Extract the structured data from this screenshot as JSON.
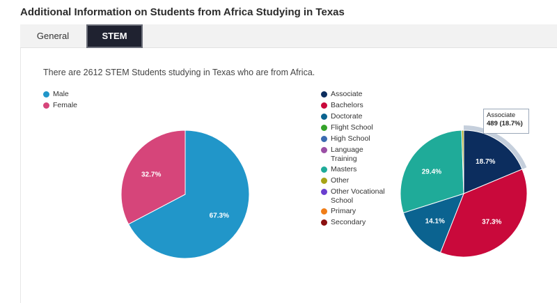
{
  "page": {
    "title": "Additional Information on Students from Africa Studying in Texas"
  },
  "tabs": [
    {
      "label": "General",
      "active": false
    },
    {
      "label": "STEM",
      "active": true
    }
  ],
  "summary": "There are 2612 STEM Students studying in Texas who are from Africa.",
  "colors": {
    "male": "#2196c9",
    "female": "#d6457a",
    "associate": "#0c2d5e",
    "bachelors": "#c9093b",
    "doctorate": "#0b6390",
    "flight_school": "#35a32a",
    "high_school": "#3b6bb0",
    "language_training": "#9b4fa5",
    "masters": "#1fab99",
    "other": "#a7a316",
    "other_vocational": "#6a3fcf",
    "primary": "#f07d17",
    "secondary": "#8a1010"
  },
  "gender_legend": [
    {
      "label": "Male",
      "color": "#2196c9"
    },
    {
      "label": "Female",
      "color": "#d6457a"
    }
  ],
  "degree_legend": [
    {
      "label": "Associate",
      "color": "#0c2d5e"
    },
    {
      "label": "Bachelors",
      "color": "#c9093b"
    },
    {
      "label": "Doctorate",
      "color": "#0b6390"
    },
    {
      "label": "Flight School",
      "color": "#35a32a"
    },
    {
      "label": "High School",
      "color": "#3b6bb0"
    },
    {
      "label": "Language\nTraining",
      "color": "#9b4fa5"
    },
    {
      "label": "Masters",
      "color": "#1fab99"
    },
    {
      "label": "Other",
      "color": "#a7a316"
    },
    {
      "label": "Other Vocational\nSchool",
      "color": "#6a3fcf"
    },
    {
      "label": "Primary",
      "color": "#f07d17"
    },
    {
      "label": "Secondary",
      "color": "#8a1010"
    }
  ],
  "tooltip": {
    "title": "Associate",
    "value": "489 (18.7%)"
  },
  "chart_data": [
    {
      "type": "pie",
      "title": "",
      "slices": [
        {
          "name": "Male",
          "value": 67.3,
          "label": "67.3%",
          "color": "#2196c9"
        },
        {
          "name": "Female",
          "value": 32.7,
          "label": "32.7%",
          "color": "#d6457a"
        }
      ]
    },
    {
      "type": "pie",
      "title": "",
      "slices": [
        {
          "name": "Associate",
          "value": 18.7,
          "label": "18.7%",
          "color": "#0c2d5e",
          "highlighted": true
        },
        {
          "name": "Bachelors",
          "value": 37.3,
          "label": "37.3%",
          "color": "#c9093b"
        },
        {
          "name": "Doctorate",
          "value": 14.1,
          "label": "14.1%",
          "color": "#0b6390"
        },
        {
          "name": "Masters",
          "value": 29.4,
          "label": "29.4%",
          "color": "#1fab99"
        },
        {
          "name": "Other",
          "value": 0.5,
          "label": "",
          "color": "#a7a316"
        }
      ]
    }
  ]
}
